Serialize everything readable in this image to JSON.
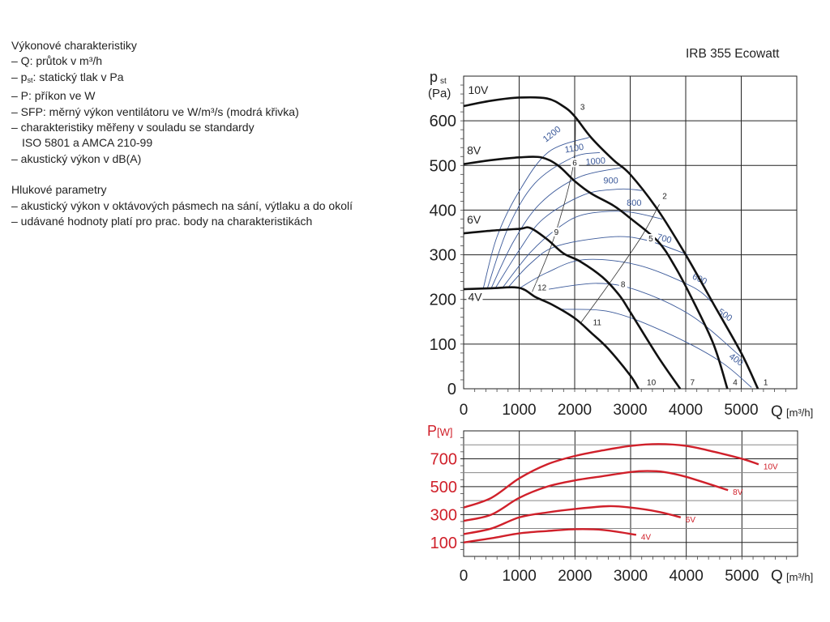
{
  "notes": {
    "heading1": "Výkonové charakteristiky",
    "lines1": [
      "– Q: průtok v m³/h",
      "– p",
      "st",
      ": statický tlak v Pa",
      "– P: příkon ve W",
      "– SFP: měrný výkon ventilátoru ve W/m³/s (modrá křivka)",
      "– charakteristiky měřeny v souladu se standardy",
      "ISO 5801 a AMCA 210-99",
      "– akustický výkon v dB(A)"
    ],
    "heading2": "Hlukové parametry",
    "lines2": [
      "– akustický výkon v oktávových pásmech na sání, výtlaku a do okolí",
      "– udávané hodnoty platí pro prac. body na charakteristikách"
    ]
  },
  "product_title": "IRB 355 Ecowatt",
  "chart_data": [
    {
      "type": "line",
      "title": "IRB 355 Ecowatt",
      "xlabel": "Q [m³/h]",
      "ylabel_main": "p",
      "ylabel_sub": "st",
      "ylabel_unit": "(Pa)",
      "xlim": [
        0,
        6000
      ],
      "ylim": [
        0,
        700
      ],
      "xticks": [
        0,
        1000,
        2000,
        3000,
        4000,
        5000
      ],
      "yticks": [
        0,
        100,
        200,
        300,
        400,
        500,
        600
      ],
      "grid": true,
      "series": [
        {
          "name": "10V",
          "points": [
            [
              0,
              633
            ],
            [
              500,
              645
            ],
            [
              1000,
              652
            ],
            [
              1500,
              650
            ],
            [
              1800,
              632
            ],
            [
              2000,
              610
            ],
            [
              2300,
              562
            ],
            [
              2700,
              512
            ],
            [
              3000,
              480
            ],
            [
              3500,
              400
            ],
            [
              4000,
              300
            ],
            [
              4500,
              190
            ],
            [
              5000,
              80
            ],
            [
              5300,
              0
            ]
          ]
        },
        {
          "name": "8V",
          "points": [
            [
              0,
              503
            ],
            [
              500,
              512
            ],
            [
              1000,
              518
            ],
            [
              1400,
              518
            ],
            [
              1700,
              500
            ],
            [
              2000,
              465
            ],
            [
              2300,
              437
            ],
            [
              2700,
              410
            ],
            [
              3000,
              382
            ],
            [
              3500,
              330
            ],
            [
              3800,
              275
            ],
            [
              4100,
              205
            ],
            [
              4500,
              100
            ],
            [
              4750,
              0
            ]
          ]
        },
        {
          "name": "6V",
          "points": [
            [
              0,
              348
            ],
            [
              500,
              354
            ],
            [
              1000,
              358
            ],
            [
              1200,
              360
            ],
            [
              1500,
              335
            ],
            [
              1800,
              303
            ],
            [
              2100,
              285
            ],
            [
              2500,
              250
            ],
            [
              2800,
              210
            ],
            [
              3000,
              172
            ],
            [
              3500,
              72
            ],
            [
              3900,
              0
            ]
          ]
        },
        {
          "name": "4V",
          "points": [
            [
              0,
              223
            ],
            [
              500,
              225
            ],
            [
              1000,
              226
            ],
            [
              1300,
              205
            ],
            [
              1600,
              188
            ],
            [
              2000,
              158
            ],
            [
              2300,
              125
            ],
            [
              2600,
              90
            ],
            [
              3000,
              30
            ],
            [
              3150,
              0
            ]
          ]
        }
      ],
      "sfp_curves": [
        {
          "label": "1200",
          "points": [
            [
              356,
              226
            ],
            [
              600,
              340
            ],
            [
              990,
              440
            ],
            [
              1527,
              530
            ],
            [
              2260,
              563
            ]
          ]
        },
        {
          "label": "1100",
          "points": [
            [
              430,
              226
            ],
            [
              800,
              360
            ],
            [
              1283,
              460
            ],
            [
              1966,
              518
            ],
            [
              2453,
              529
            ]
          ]
        },
        {
          "label": "1000",
          "points": [
            [
              500,
              226
            ],
            [
              900,
              330
            ],
            [
              1380,
              415
            ],
            [
              2063,
              473
            ],
            [
              2840,
              495
            ]
          ]
        },
        {
          "label": "900",
          "points": [
            [
              575,
              226
            ],
            [
              1000,
              310
            ],
            [
              1430,
              380
            ],
            [
              2160,
              434
            ],
            [
              2800,
              447
            ],
            [
              3210,
              444
            ]
          ]
        },
        {
          "label": "800",
          "points": [
            [
              700,
              226
            ],
            [
              1200,
              305
            ],
            [
              1700,
              360
            ],
            [
              2160,
              390
            ],
            [
              2890,
              397
            ],
            [
              3576,
              380
            ]
          ]
        },
        {
          "label": "700",
          "points": [
            [
              795,
              226
            ],
            [
              1200,
              280
            ],
            [
              1670,
              319
            ],
            [
              2650,
              340
            ],
            [
              3280,
              333
            ],
            [
              4040,
              300
            ]
          ]
        },
        {
          "label": "600",
          "points": [
            [
              1015,
              226
            ],
            [
              1500,
              260
            ],
            [
              2160,
              289
            ],
            [
              3137,
              277
            ],
            [
              4110,
              229
            ],
            [
              4480,
              193
            ]
          ]
        },
        {
          "label": "500",
          "points": [
            [
              1480,
              222
            ],
            [
              2400,
              236
            ],
            [
              3137,
              220
            ],
            [
              4110,
              163
            ],
            [
              4990,
              72
            ]
          ]
        },
        {
          "label": "400",
          "points": [
            [
              1770,
              178
            ],
            [
              2650,
              172
            ],
            [
              3625,
              127
            ],
            [
              4600,
              63
            ],
            [
              5185,
              3
            ]
          ]
        }
      ],
      "system_curves": [
        {
          "points": [
            [
              1235,
              217
            ],
            [
              1625,
              337
            ],
            [
              1966,
              494
            ],
            [
              2015,
              603
            ]
          ]
        },
        {
          "points": [
            [
              2112,
              148
            ],
            [
              2650,
              240
            ],
            [
              3200,
              340
            ],
            [
              3527,
              413
            ]
          ]
        }
      ],
      "point_labels": [
        {
          "label": "1",
          "q": 5400,
          "p": 8
        },
        {
          "label": "2",
          "q": 3580,
          "p": 425
        },
        {
          "label": "3",
          "q": 2100,
          "p": 625
        },
        {
          "label": "4",
          "q": 4850,
          "p": 8
        },
        {
          "label": "5",
          "q": 3330,
          "p": 330
        },
        {
          "label": "6",
          "q": 1960,
          "p": 500
        },
        {
          "label": "7",
          "q": 4080,
          "p": 8
        },
        {
          "label": "8",
          "q": 2830,
          "p": 228
        },
        {
          "label": "9",
          "q": 1630,
          "p": 345
        },
        {
          "label": "10",
          "q": 3300,
          "p": 8
        },
        {
          "label": "11",
          "q": 2330,
          "p": 142
        },
        {
          "label": "12",
          "q": 1330,
          "p": 220
        }
      ],
      "series_labels": [
        {
          "label": "10V",
          "q": 80,
          "p": 660
        },
        {
          "label": "8V",
          "q": 60,
          "p": 525
        },
        {
          "label": "6V",
          "q": 60,
          "p": 370
        },
        {
          "label": "4V",
          "q": 80,
          "p": 197
        }
      ]
    },
    {
      "type": "line",
      "ylabel_main": "P",
      "ylabel_unit": "[W]",
      "xlabel": "Q [m³/h]",
      "xlim": [
        0,
        6000
      ],
      "ylim": [
        0,
        900
      ],
      "xticks": [
        0,
        1000,
        2000,
        3000,
        4000,
        5000
      ],
      "yticks_labeled": [
        100,
        300,
        500,
        700
      ],
      "ygrid": [
        100,
        200,
        300,
        400,
        500,
        600,
        700,
        800
      ],
      "grid": true,
      "color": "#d0202a",
      "series": [
        {
          "name": "10V",
          "points": [
            [
              0,
              350
            ],
            [
              500,
              420
            ],
            [
              1000,
              560
            ],
            [
              1500,
              660
            ],
            [
              2000,
              720
            ],
            [
              2500,
              760
            ],
            [
              3000,
              792
            ],
            [
              3500,
              805
            ],
            [
              4000,
              792
            ],
            [
              4500,
              750
            ],
            [
              5000,
              700
            ],
            [
              5300,
              660
            ]
          ]
        },
        {
          "name": "8V",
          "points": [
            [
              0,
              255
            ],
            [
              500,
              300
            ],
            [
              1000,
              420
            ],
            [
              1500,
              500
            ],
            [
              2000,
              545
            ],
            [
              2500,
              575
            ],
            [
              3000,
              605
            ],
            [
              3300,
              612
            ],
            [
              3600,
              605
            ],
            [
              4000,
              570
            ],
            [
              4750,
              475
            ]
          ]
        },
        {
          "name": "6V",
          "points": [
            [
              0,
              160
            ],
            [
              500,
              200
            ],
            [
              1000,
              280
            ],
            [
              1500,
              315
            ],
            [
              2000,
              340
            ],
            [
              2600,
              360
            ],
            [
              3000,
              350
            ],
            [
              3500,
              320
            ],
            [
              3900,
              280
            ]
          ]
        },
        {
          "name": "4V",
          "points": [
            [
              0,
              100
            ],
            [
              500,
              130
            ],
            [
              1000,
              165
            ],
            [
              1500,
              182
            ],
            [
              2000,
              195
            ],
            [
              2500,
              190
            ],
            [
              3100,
              155
            ]
          ]
        }
      ]
    }
  ]
}
